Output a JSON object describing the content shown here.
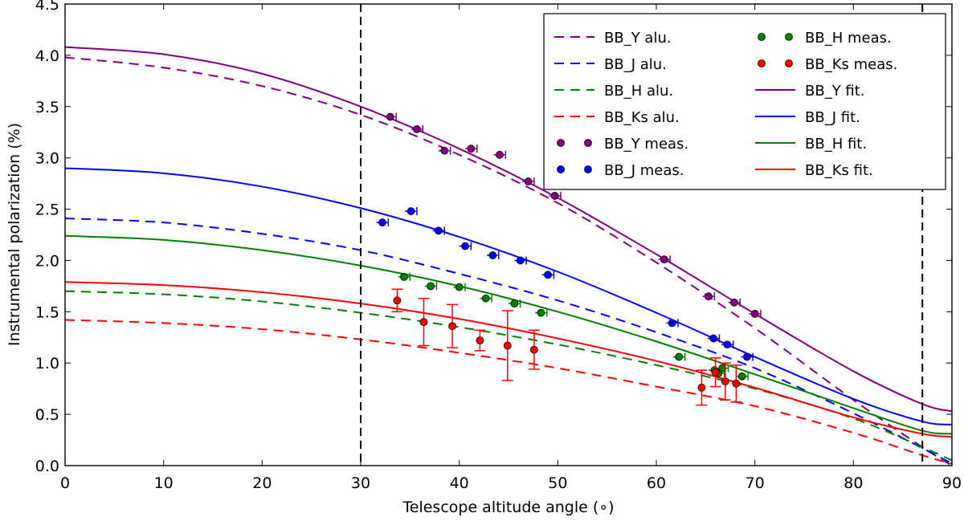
{
  "chart_data": {
    "type": "line",
    "title": "",
    "xlabel": "Telescope altitude angle (∘)",
    "ylabel": "Instrumental polarization (%)",
    "xlim": [
      0,
      90
    ],
    "ylim": [
      0.0,
      4.5
    ],
    "x_ticks": [
      "0",
      "10",
      "20",
      "30",
      "40",
      "50",
      "60",
      "70",
      "80",
      "90"
    ],
    "y_ticks": [
      "0.0",
      "0.5",
      "1.0",
      "1.5",
      "2.0",
      "2.5",
      "3.0",
      "3.5",
      "4.0",
      "4.5"
    ],
    "grid": false,
    "legend_position": "top-right",
    "vertical_lines": [
      30,
      87
    ],
    "colors": {
      "Y": "#800080",
      "J": "#0000ff",
      "H": "#008000",
      "Ks": "#ff0000",
      "vline": "#000000"
    },
    "legend": [
      "BB_Y alu.",
      "BB_J alu.",
      "BB_H alu.",
      "BB_Ks alu.",
      "BB_Y meas.",
      "BB_J meas.",
      "BB_H meas.",
      "BB_Ks meas.",
      "BB_Y fit.",
      "BB_J fit.",
      "BB_H fit.",
      "BB_Ks fit."
    ],
    "series": [
      {
        "name": "BB_Y alu.",
        "band": "Y",
        "style": "dashed",
        "x": [
          0,
          10,
          20,
          30,
          40,
          50,
          60,
          70,
          80,
          87,
          90
        ],
        "y": [
          3.98,
          3.88,
          3.7,
          3.42,
          3.03,
          2.56,
          1.98,
          1.34,
          0.64,
          0.18,
          0.0
        ]
      },
      {
        "name": "BB_J alu.",
        "band": "J",
        "style": "dashed",
        "x": [
          0,
          10,
          20,
          30,
          40,
          50,
          60,
          70,
          80,
          87,
          90
        ],
        "y": [
          2.41,
          2.37,
          2.26,
          2.1,
          1.87,
          1.61,
          1.3,
          0.95,
          0.51,
          0.17,
          0.02
        ]
      },
      {
        "name": "BB_H alu.",
        "band": "H",
        "style": "dashed",
        "x": [
          0,
          10,
          20,
          30,
          40,
          50,
          60,
          70,
          80,
          87,
          90
        ],
        "y": [
          1.7,
          1.67,
          1.6,
          1.49,
          1.35,
          1.18,
          0.98,
          0.75,
          0.46,
          0.18,
          0.05
        ]
      },
      {
        "name": "BB_Ks alu.",
        "band": "Ks",
        "style": "dashed",
        "x": [
          0,
          10,
          20,
          30,
          40,
          50,
          60,
          70,
          80,
          87,
          90
        ],
        "y": [
          1.42,
          1.39,
          1.33,
          1.23,
          1.1,
          0.95,
          0.77,
          0.58,
          0.32,
          0.1,
          0.02
        ]
      },
      {
        "name": "BB_Y fit.",
        "band": "Y",
        "style": "solid",
        "x": [
          0,
          10,
          20,
          30,
          40,
          50,
          60,
          70,
          80,
          87,
          90
        ],
        "y": [
          4.08,
          4.01,
          3.82,
          3.5,
          3.09,
          2.61,
          2.06,
          1.48,
          0.92,
          0.6,
          0.53
        ]
      },
      {
        "name": "BB_J fit.",
        "band": "J",
        "style": "solid",
        "x": [
          0,
          10,
          20,
          30,
          40,
          50,
          60,
          70,
          80,
          87,
          90
        ],
        "y": [
          2.9,
          2.85,
          2.72,
          2.51,
          2.23,
          1.89,
          1.49,
          1.06,
          0.65,
          0.43,
          0.4
        ]
      },
      {
        "name": "BB_H fit.",
        "band": "H",
        "style": "solid",
        "x": [
          0,
          10,
          20,
          30,
          40,
          50,
          60,
          70,
          80,
          87,
          90
        ],
        "y": [
          2.24,
          2.2,
          2.1,
          1.95,
          1.75,
          1.5,
          1.21,
          0.89,
          0.56,
          0.34,
          0.31
        ]
      },
      {
        "name": "BB_Ks fit.",
        "band": "Ks",
        "style": "solid",
        "x": [
          0,
          10,
          20,
          30,
          40,
          50,
          60,
          70,
          80,
          87,
          90
        ],
        "y": [
          1.79,
          1.76,
          1.69,
          1.58,
          1.43,
          1.24,
          1.02,
          0.76,
          0.47,
          0.31,
          0.28
        ]
      },
      {
        "name": "BB_Y meas.",
        "band": "Y",
        "style": "points",
        "x": [
          33.0,
          35.7,
          38.5,
          41.2,
          44.1,
          47.0,
          49.7,
          60.8,
          65.3,
          67.9,
          70.0
        ],
        "y": [
          3.4,
          3.28,
          3.07,
          3.09,
          3.03,
          2.77,
          2.63,
          2.01,
          1.65,
          1.59,
          1.48
        ],
        "xerr": [
          0.6,
          0.6,
          0.6,
          0.6,
          0.6,
          0.6,
          0.6,
          0.6,
          0.6,
          0.6,
          0.6
        ]
      },
      {
        "name": "BB_J meas.",
        "band": "J",
        "style": "points",
        "x": [
          32.2,
          35.1,
          37.9,
          40.6,
          43.4,
          46.2,
          49.0,
          61.6,
          65.8,
          67.2,
          69.2
        ],
        "y": [
          2.37,
          2.48,
          2.29,
          2.14,
          2.05,
          2.0,
          1.86,
          1.39,
          1.24,
          1.18,
          1.06
        ],
        "xerr": [
          0.6,
          0.6,
          0.6,
          0.6,
          0.6,
          0.6,
          0.6,
          0.6,
          0.6,
          0.6,
          0.6
        ]
      },
      {
        "name": "BB_H meas.",
        "band": "H",
        "style": "points",
        "x": [
          34.4,
          37.1,
          40.0,
          42.7,
          45.6,
          48.3,
          62.3,
          65.9,
          66.3,
          66.7,
          68.7
        ],
        "y": [
          1.84,
          1.75,
          1.74,
          1.63,
          1.58,
          1.49,
          1.06,
          0.93,
          0.9,
          0.95,
          0.87
        ],
        "xerr": [
          0.6,
          0.6,
          0.6,
          0.6,
          0.6,
          0.6,
          0.6,
          0.6,
          0.6,
          0.6,
          0.6
        ]
      },
      {
        "name": "BB_Ks meas.",
        "band": "Ks",
        "style": "points",
        "x": [
          33.7,
          36.4,
          39.3,
          42.1,
          44.9,
          47.6,
          64.6,
          66.0,
          67.0,
          68.1
        ],
        "y": [
          1.61,
          1.4,
          1.36,
          1.22,
          1.17,
          1.13,
          0.76,
          0.91,
          0.82,
          0.8
        ],
        "yerr": [
          0.11,
          0.23,
          0.21,
          0.1,
          0.34,
          0.19,
          0.17,
          0.14,
          0.18,
          0.18
        ]
      }
    ]
  }
}
